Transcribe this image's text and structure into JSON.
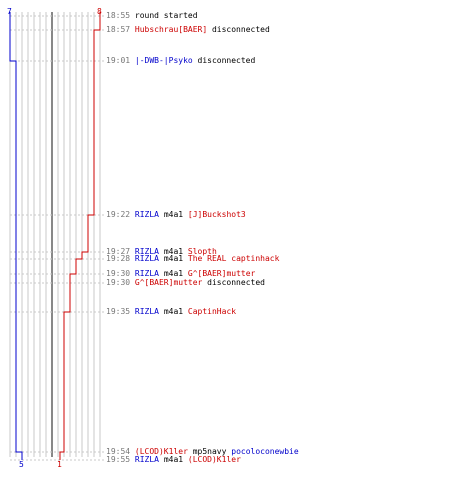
{
  "colors": {
    "team_blue": "#0000cc",
    "team_red": "#cc0000",
    "grid": "#c8c8c8",
    "grid_mid": "#888888",
    "muted": "#777777",
    "text": "#000000"
  },
  "scores": {
    "blue_start": "7",
    "red_start": "8",
    "blue_end": "5",
    "red_end": "1"
  },
  "events": [
    {
      "time": "18:55",
      "parts": [
        {
          "text": "round started",
          "c": "muted"
        }
      ]
    },
    {
      "time": "18:57",
      "parts": [
        {
          "text": "Hubschrau[BAER]",
          "c": "red"
        },
        {
          "text": " disconnected",
          "c": "muted"
        }
      ]
    },
    {
      "time": "19:01",
      "parts": [
        {
          "text": "|-DWB-|Psyko",
          "c": "blue"
        },
        {
          "text": " disconnected",
          "c": "muted"
        }
      ]
    },
    {
      "time": "19:22",
      "parts": [
        {
          "text": "RIZLA",
          "c": "blue"
        },
        {
          "text": " m4a1 ",
          "c": "dark"
        },
        {
          "text": "[J]Buckshot3",
          "c": "red"
        }
      ]
    },
    {
      "time": "19:27",
      "parts": [
        {
          "text": "RIZLA",
          "c": "blue"
        },
        {
          "text": " m4a1 ",
          "c": "dark"
        },
        {
          "text": "Slopth",
          "c": "red"
        }
      ]
    },
    {
      "time": "19:28",
      "parts": [
        {
          "text": "RIZLA",
          "c": "blue"
        },
        {
          "text": " m4a1 ",
          "c": "dark"
        },
        {
          "text": "The REAL captinhack",
          "c": "red"
        }
      ]
    },
    {
      "time": "19:30",
      "parts": [
        {
          "text": "RIZLA",
          "c": "blue"
        },
        {
          "text": " m4a1 ",
          "c": "dark"
        },
        {
          "text": "G^[BAER]mutter",
          "c": "red"
        }
      ]
    },
    {
      "time": "19:30",
      "parts": [
        {
          "text": "G^[BAER]mutter",
          "c": "red"
        },
        {
          "text": " disconnected",
          "c": "muted"
        }
      ]
    },
    {
      "time": "19:35",
      "parts": [
        {
          "text": "RIZLA",
          "c": "blue"
        },
        {
          "text": " m4a1 ",
          "c": "dark"
        },
        {
          "text": "CaptinHack",
          "c": "red"
        }
      ]
    },
    {
      "time": "19:54",
      "parts": [
        {
          "text": "(LCOD)K1ler",
          "c": "red"
        },
        {
          "text": " mp5navy ",
          "c": "dark"
        },
        {
          "text": "pocoloconewbie",
          "c": "blue"
        }
      ]
    },
    {
      "time": "19:55",
      "parts": [
        {
          "text": "RIZLA",
          "c": "blue"
        },
        {
          "text": " m4a1 ",
          "c": "dark"
        },
        {
          "text": "(LCOD)K1ler",
          "c": "red"
        }
      ]
    }
  ]
}
